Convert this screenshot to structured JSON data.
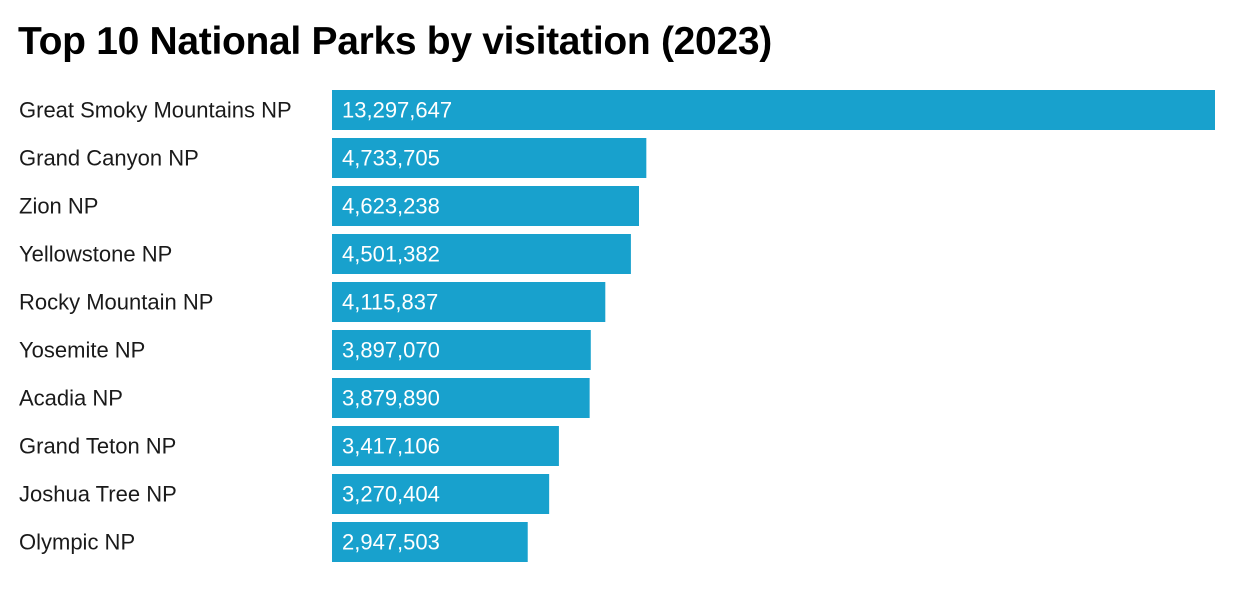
{
  "chart_data": {
    "type": "bar",
    "orientation": "horizontal",
    "title": "Top 10 National Parks by visitation (2023)",
    "xlabel": "",
    "ylabel": "",
    "categories": [
      "Great Smoky Mountains NP",
      "Grand Canyon NP",
      "Zion NP",
      "Yellowstone NP",
      "Rocky Mountain NP",
      "Yosemite NP",
      "Acadia NP",
      "Grand Teton NP",
      "Joshua Tree NP",
      "Olympic NP"
    ],
    "values": [
      13297647,
      4733705,
      4623238,
      4501382,
      4115837,
      3897070,
      3879890,
      3417106,
      3270404,
      2947503
    ],
    "value_labels": [
      "13,297,647",
      "4,733,705",
      "4,623,238",
      "4,501,382",
      "4,115,837",
      "3,897,070",
      "3,879,890",
      "3,417,106",
      "3,270,404",
      "2,947,503"
    ],
    "xlim": [
      0,
      13297647
    ],
    "grid": false,
    "legend": "none",
    "bar_color": "#18a1cd",
    "value_label_color": "#ffffff"
  }
}
